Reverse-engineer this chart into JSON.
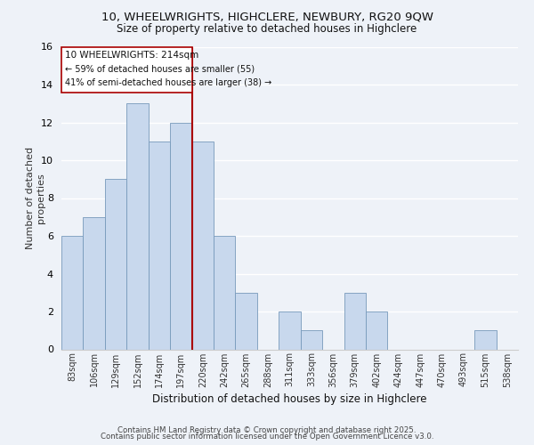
{
  "title": "10, WHEELWRIGHTS, HIGHCLERE, NEWBURY, RG20 9QW",
  "subtitle": "Size of property relative to detached houses in Highclere",
  "xlabel": "Distribution of detached houses by size in Highclere",
  "ylabel": "Number of detached\nproperties",
  "bar_labels": [
    "83sqm",
    "106sqm",
    "129sqm",
    "152sqm",
    "174sqm",
    "197sqm",
    "220sqm",
    "242sqm",
    "265sqm",
    "288sqm",
    "311sqm",
    "333sqm",
    "356sqm",
    "379sqm",
    "402sqm",
    "424sqm",
    "447sqm",
    "470sqm",
    "493sqm",
    "515sqm",
    "538sqm"
  ],
  "bar_values": [
    6,
    7,
    9,
    13,
    11,
    12,
    11,
    6,
    3,
    0,
    2,
    1,
    0,
    3,
    2,
    0,
    0,
    0,
    0,
    1,
    0
  ],
  "bar_color": "#c8d8ed",
  "bar_edge_color": "#7799bb",
  "vline_x": 6,
  "vline_color": "#aa0000",
  "annotation_line1": "10 WHEELWRIGHTS: 214sqm",
  "annotation_line2": "← 59% of detached houses are smaller (55)",
  "annotation_line3": "41% of semi-detached houses are larger (38) →",
  "footer_line1": "Contains HM Land Registry data © Crown copyright and database right 2025.",
  "footer_line2": "Contains public sector information licensed under the Open Government Licence v3.0.",
  "bg_color": "#eef2f8",
  "plot_bg_color": "#eef2f8",
  "ylim": [
    0,
    16
  ],
  "yticks": [
    0,
    2,
    4,
    6,
    8,
    10,
    12,
    14,
    16
  ]
}
